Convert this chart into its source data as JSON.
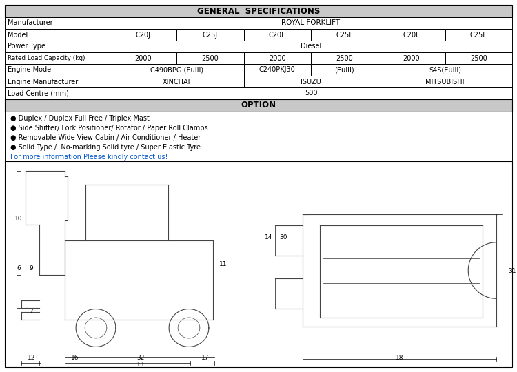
{
  "title": "GENERAL  SPECIFICATIONS",
  "option_title": "OPTION",
  "header_bg": "#c8c8c8",
  "models": [
    "C20J",
    "C25J",
    "C20F",
    "C25F",
    "C20E",
    "C25E"
  ],
  "capacities": [
    "2000",
    "2500",
    "2000",
    "2500",
    "2000",
    "2500"
  ],
  "engine_models": [
    "C490BPG (EuIII)",
    "C240PKJ30",
    "(EuIII)",
    "S4S(EuIII)"
  ],
  "engine_mfrs": [
    "XINCHAI",
    "ISUZU",
    "MITSUBISHI"
  ],
  "option_bullets": [
    "● Duplex / Duplex Full Free / Triplex Mast",
    "● Side Shifter/ Fork Positioner/ Rotator / Paper Roll Clamps",
    "● Removable Wide View Cabin / Air Conditioner / Heater",
    "● Solid Type /  No-marking Solid tyre / Super Elastic Tyre"
  ],
  "contact_text": "For more information Please kindly contact us!",
  "contact_color": "#0055cc",
  "bg_color": "#ffffff",
  "header_text_color": "#000000",
  "cell_text_color": "#000000",
  "line_color": "#444444",
  "dim_color": "#000000"
}
